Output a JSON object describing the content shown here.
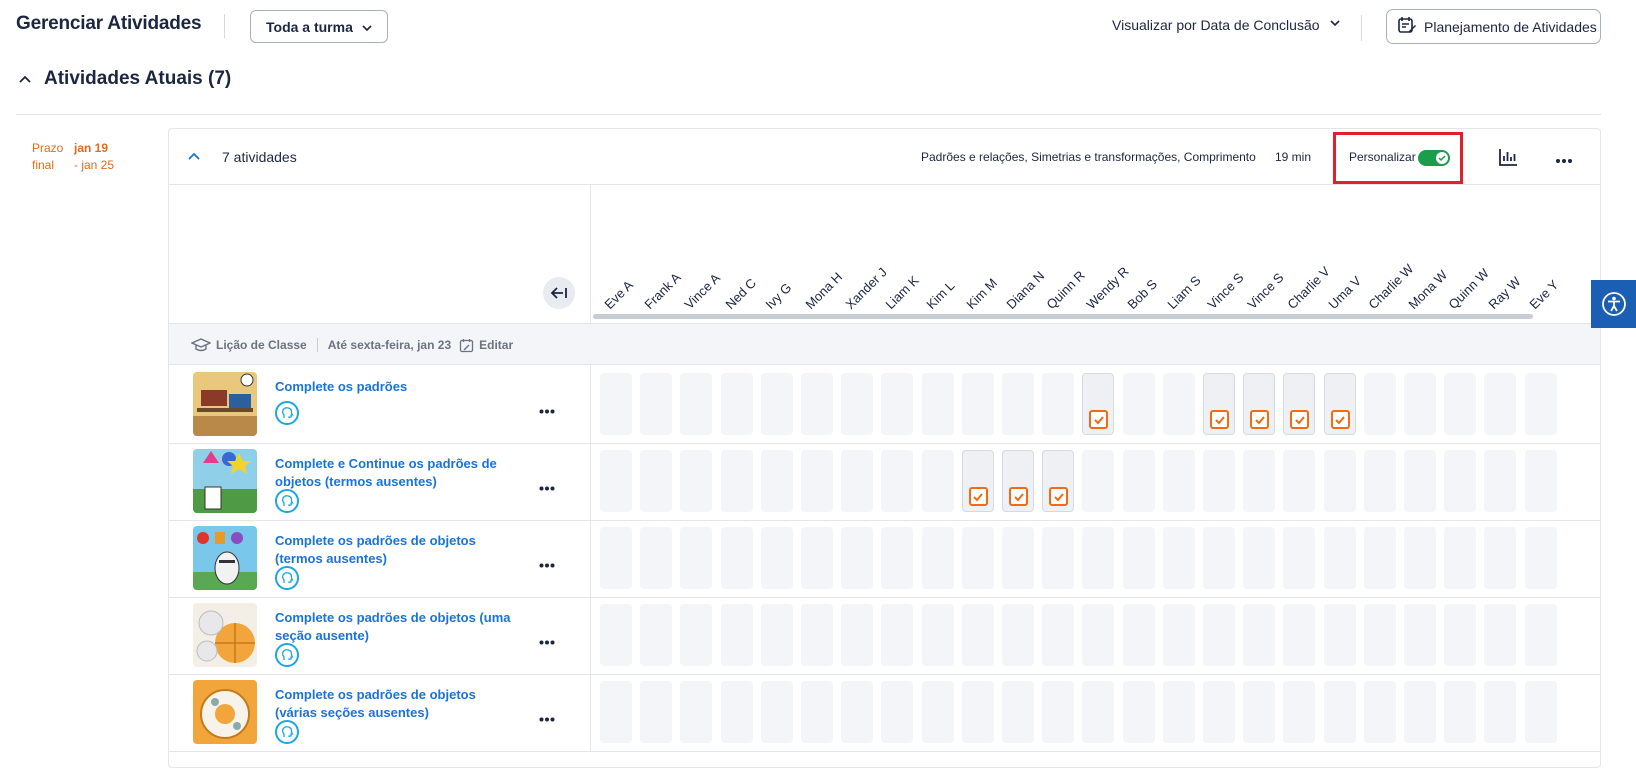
{
  "header": {
    "title": "Gerenciar Atividades",
    "class_select": "Toda a turma",
    "view_by": "Visualizar por Data de Conclusão",
    "planning_button": "Planejamento de Atividades"
  },
  "section": {
    "title": "Atividades Atuais (7)"
  },
  "due": {
    "label_line1": "Prazo",
    "label_line2": "final",
    "start": "jan 19",
    "end": "- jan 25"
  },
  "card": {
    "count": "7 atividades",
    "topics": "Padrões e relações, Simetrias e transformações, Comprimento",
    "duration": "19 min",
    "personalize": "Personalizar",
    "personalize_on": true
  },
  "students": [
    "Eve A",
    "Frank A",
    "Vince A",
    "Ned C",
    "Ivy G",
    "Mona H",
    "Xander J",
    "Liam K",
    "Kim L",
    "Kim M",
    "Diana N",
    "Quinn R",
    "Wendy R",
    "Bob S",
    "Liam S",
    "Vince S",
    "Vince S",
    "Charlie V",
    "Uma V",
    "Charlie W",
    "Mona W",
    "Quinn W",
    "Ray W",
    "Eve Y"
  ],
  "lesson": {
    "type": "Lição de Classe",
    "due": "Até sexta-feira, jan 23",
    "edit": "Editar"
  },
  "activities": [
    {
      "title": "Complete os padrões",
      "assigned": [
        12,
        15,
        16,
        17,
        18
      ]
    },
    {
      "title": "Complete e Continue os padrões de objetos (termos ausentes)",
      "assigned": [
        9,
        10,
        11
      ]
    },
    {
      "title": "Complete os padrões de objetos (termos ausentes)",
      "assigned": []
    },
    {
      "title": "Complete os padrões de objetos (uma seção ausente)",
      "assigned": []
    },
    {
      "title": "Complete os padrões de objetos (várias seções ausentes)",
      "assigned": []
    }
  ],
  "colors": {
    "accent": "#1a73d9",
    "toggle_on": "#1a9e4b",
    "check": "#ef6b14",
    "highlight": "#e0202a",
    "due": "#e06c1a"
  },
  "icons": {
    "chevron": "chevron-down-icon",
    "planning": "calendar-edit-icon",
    "section_toggle": "chevron-up-icon",
    "chart": "bar-chart-icon",
    "more": "more-horizontal-icon",
    "collapse": "collapse-left-icon",
    "lesson": "graduation-cap-icon",
    "edit": "calendar-edit-icon",
    "activity_type": "head-brain-icon",
    "accessibility": "accessibility-icon"
  }
}
